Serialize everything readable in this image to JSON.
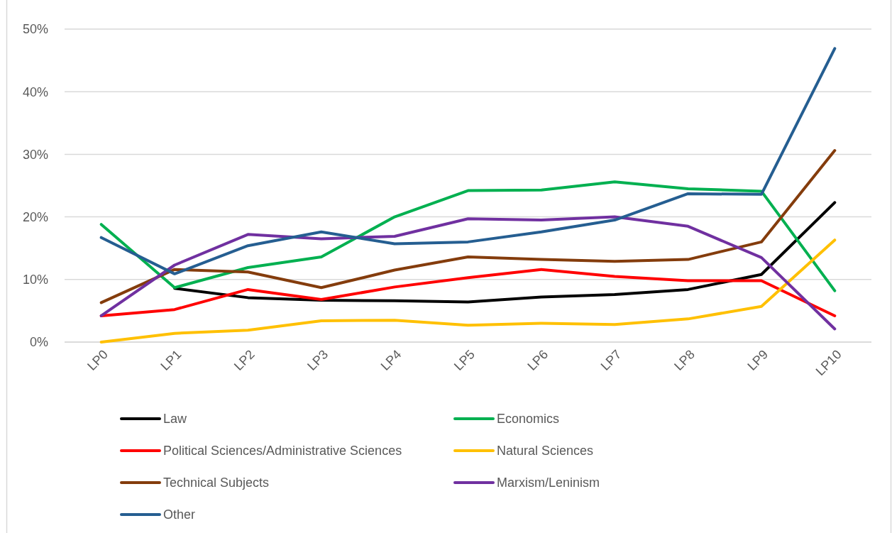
{
  "chart_data": {
    "type": "line",
    "categories": [
      "LP0",
      "LP1",
      "LP2",
      "LP3",
      "LP4",
      "LP5",
      "LP6",
      "LP7",
      "LP8",
      "LP9",
      "LP10"
    ],
    "series": [
      {
        "name": "Law",
        "color": "#000000",
        "values": [
          null,
          8.6,
          7.1,
          6.7,
          6.6,
          6.4,
          7.2,
          7.6,
          8.4,
          10.8,
          22.3
        ]
      },
      {
        "name": "Economics",
        "color": "#00b050",
        "values": [
          18.8,
          8.7,
          11.9,
          13.6,
          20.0,
          24.2,
          24.3,
          25.6,
          24.5,
          24.1,
          8.2
        ]
      },
      {
        "name": "Political Sciences/Administrative Sciences",
        "color": "#ff0000",
        "values": [
          4.2,
          5.2,
          8.4,
          6.8,
          8.8,
          10.3,
          11.6,
          10.5,
          9.8,
          9.8,
          4.2
        ]
      },
      {
        "name": "Natural Sciences",
        "color": "#ffc000",
        "values": [
          0,
          1.4,
          1.9,
          3.4,
          3.5,
          2.7,
          3.0,
          2.8,
          3.7,
          5.7,
          16.3
        ]
      },
      {
        "name": "Technical Subjects",
        "color": "#843c0c",
        "values": [
          6.3,
          11.6,
          11.2,
          8.7,
          11.5,
          13.6,
          13.2,
          12.9,
          13.2,
          16.0,
          30.6
        ]
      },
      {
        "name": "Marxism/Leninism",
        "color": "#7030a0",
        "values": [
          4.2,
          12.3,
          17.2,
          16.5,
          16.9,
          19.7,
          19.5,
          20.0,
          18.5,
          13.5,
          2.1
        ]
      },
      {
        "name": "Other",
        "color": "#255e91",
        "values": [
          16.7,
          10.9,
          15.4,
          17.6,
          15.7,
          16.0,
          17.6,
          19.5,
          23.7,
          23.6,
          46.9
        ]
      }
    ],
    "ylim": [
      0,
      50
    ],
    "yticks": [
      {
        "value": 0,
        "label": "0%"
      },
      {
        "value": 10,
        "label": "10%"
      },
      {
        "value": 20,
        "label": "20%"
      },
      {
        "value": 30,
        "label": "30%"
      },
      {
        "value": 40,
        "label": "40%"
      },
      {
        "value": 50,
        "label": "50%"
      }
    ],
    "grid": "y",
    "legend": "bottom"
  }
}
